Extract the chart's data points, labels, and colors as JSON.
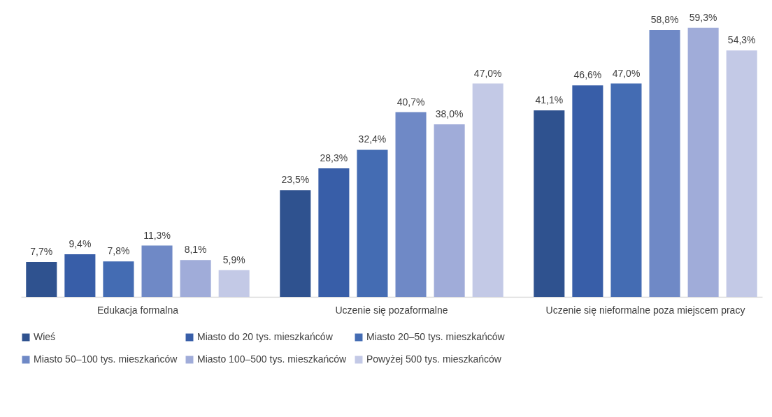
{
  "chart_data": {
    "type": "bar",
    "categories": [
      "Edukacja formalna",
      "Uczenie się pozaformalne",
      "Uczenie się nieformalne poza miejscem pracy"
    ],
    "legend": "bottom",
    "series": [
      {
        "name": "Wieś",
        "color": "#2f528f",
        "values": [
          7.7,
          23.5,
          41.1
        ],
        "value_labels": [
          "7,7%",
          "23,5%",
          "41,1%"
        ]
      },
      {
        "name": "Miasto do 20 tys. mieszkańców",
        "color": "#385ea8",
        "values": [
          9.4,
          28.3,
          46.6
        ],
        "value_labels": [
          "9,4%",
          "28,3%",
          "46,6%"
        ]
      },
      {
        "name": "Miasto 20–50 tys. mieszkańców",
        "color": "#446cb3",
        "values": [
          7.8,
          32.4,
          47.0
        ],
        "value_labels": [
          "7,8%",
          "32,4%",
          "47,0%"
        ]
      },
      {
        "name": "Miasto 50–100 tys. mieszkańców",
        "color": "#6f89c6",
        "values": [
          11.3,
          40.7,
          58.8
        ],
        "value_labels": [
          "11,3%",
          "40,7%",
          "58,8%"
        ]
      },
      {
        "name": "Miasto 100–500 tys. mieszkańców",
        "color": "#a0acd9",
        "values": [
          8.1,
          38.0,
          59.3
        ],
        "value_labels": [
          "8,1%",
          "38,0%",
          "59,3%"
        ]
      },
      {
        "name": "Powyżej 500 tys. mieszkańców",
        "color": "#c3c9e6",
        "values": [
          5.9,
          47.0,
          54.3
        ],
        "value_labels": [
          "5,9%",
          "47,0%",
          "54,3%"
        ]
      }
    ]
  }
}
